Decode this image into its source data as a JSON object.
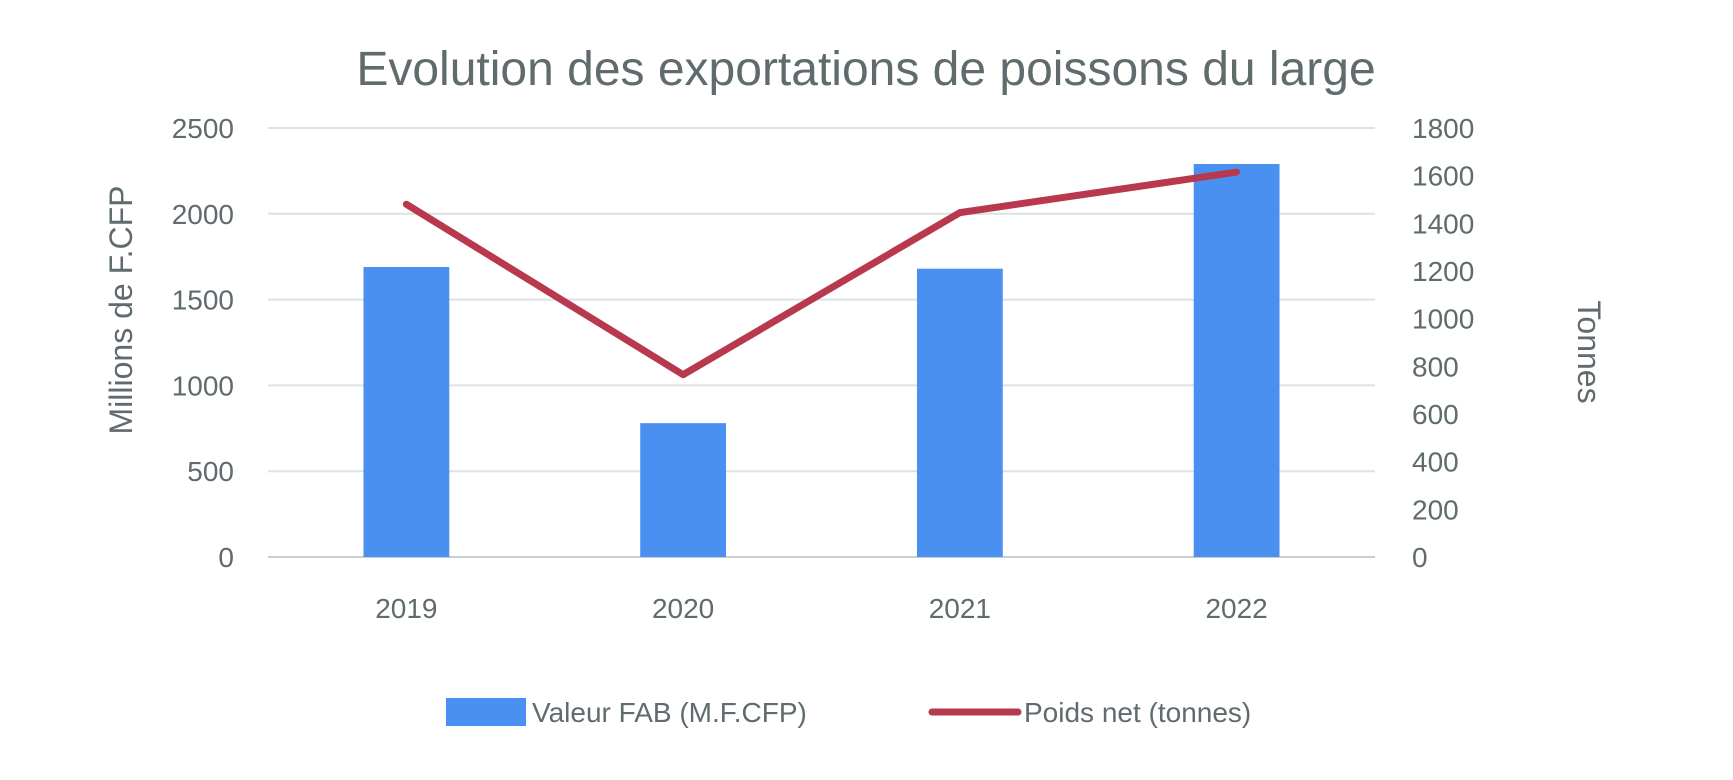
{
  "chart_data": {
    "type": "bar",
    "title": "Evolution des exportations de poissons du large",
    "categories": [
      "2019",
      "2020",
      "2021",
      "2022"
    ],
    "ylabel": "Millions de F.CFP",
    "y2label": "Tonnes",
    "ylim": [
      0,
      2500
    ],
    "y2lim": [
      0,
      1800
    ],
    "yticks": [
      "0",
      "500",
      "1000",
      "1500",
      "2000",
      "2500"
    ],
    "y2ticks": [
      "0",
      "200",
      "400",
      "600",
      "800",
      "1000",
      "1200",
      "1400",
      "1600",
      "1800"
    ],
    "grid": true,
    "legend_position": "bottom",
    "series": [
      {
        "name": "Valeur FAB (M.F.CFP)",
        "type": "bar",
        "axis": "left",
        "color": "#4a90f0",
        "values": [
          1690,
          780,
          1680,
          2290
        ]
      },
      {
        "name": "Poids net (tonnes)",
        "type": "line",
        "axis": "right",
        "color": "#b8384e",
        "values": [
          1480,
          765,
          1445,
          1615
        ]
      }
    ]
  }
}
